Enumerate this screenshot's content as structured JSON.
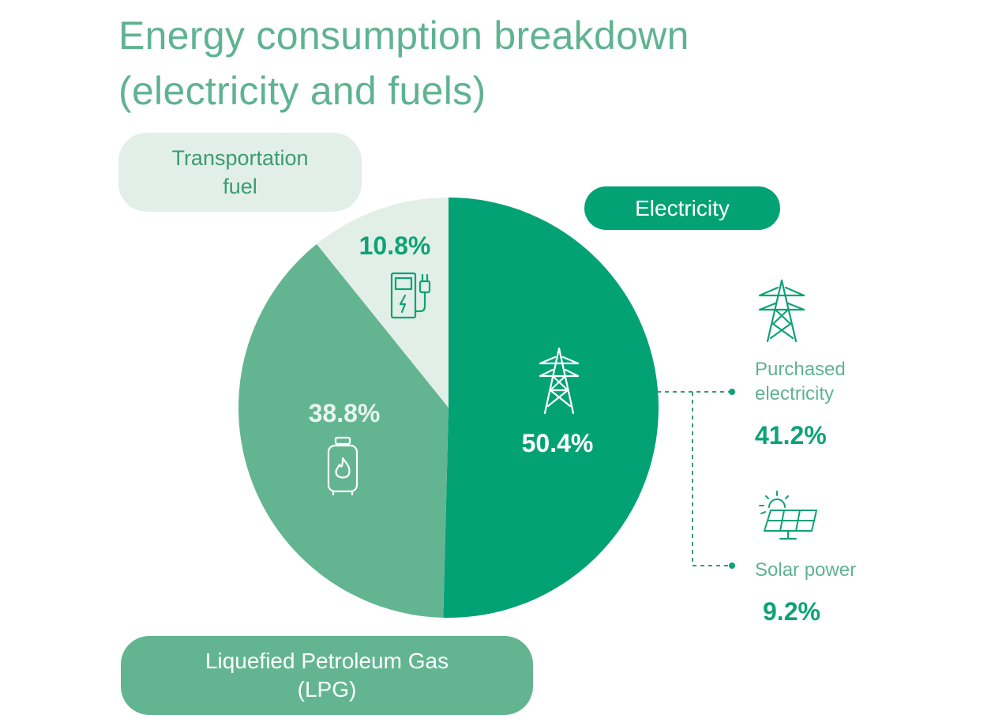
{
  "title": {
    "line1": "Energy consumption breakdown",
    "line2": "(electricity and fuels)"
  },
  "pills": {
    "transport": {
      "line1": "Transportation",
      "line2": "fuel"
    },
    "electricity": "Electricity",
    "lpg": {
      "line1": "Liquefied Petroleum Gas",
      "line2": "(LPG)"
    }
  },
  "chart_data": {
    "type": "pie",
    "title": "Energy consumption breakdown (electricity and fuels)",
    "slices": [
      {
        "name": "Electricity",
        "value": 50.4,
        "label": "50.4%",
        "color": "#03a275"
      },
      {
        "name": "Liquefied Petroleum Gas (LPG)",
        "value": 38.8,
        "label": "38.8%",
        "color": "#63b592"
      },
      {
        "name": "Transportation fuel",
        "value": 10.8,
        "label": "10.8%",
        "color": "#e2efe8"
      }
    ],
    "electricity_breakdown": [
      {
        "name": "Purchased electricity",
        "value": 41.2,
        "label": "41.2%",
        "icon": "transmission-tower-icon"
      },
      {
        "name": "Solar power",
        "value": 9.2,
        "label": "9.2%",
        "icon": "solar-panel-icon"
      }
    ]
  },
  "breakdown_text": {
    "purchased_line1": "Purchased",
    "purchased_line2": "electricity",
    "solar": "Solar power"
  },
  "colors": {
    "title": "#5fb391",
    "electricity": "#03a275",
    "lpg": "#63b592",
    "transport": "#e2efe8",
    "accent_text": "#0ea277"
  },
  "icons": {
    "transport": "ev-charger-icon",
    "lpg": "gas-cylinder-icon",
    "electricity": "transmission-tower-icon",
    "purchased": "transmission-tower-icon",
    "solar": "solar-panel-icon"
  }
}
